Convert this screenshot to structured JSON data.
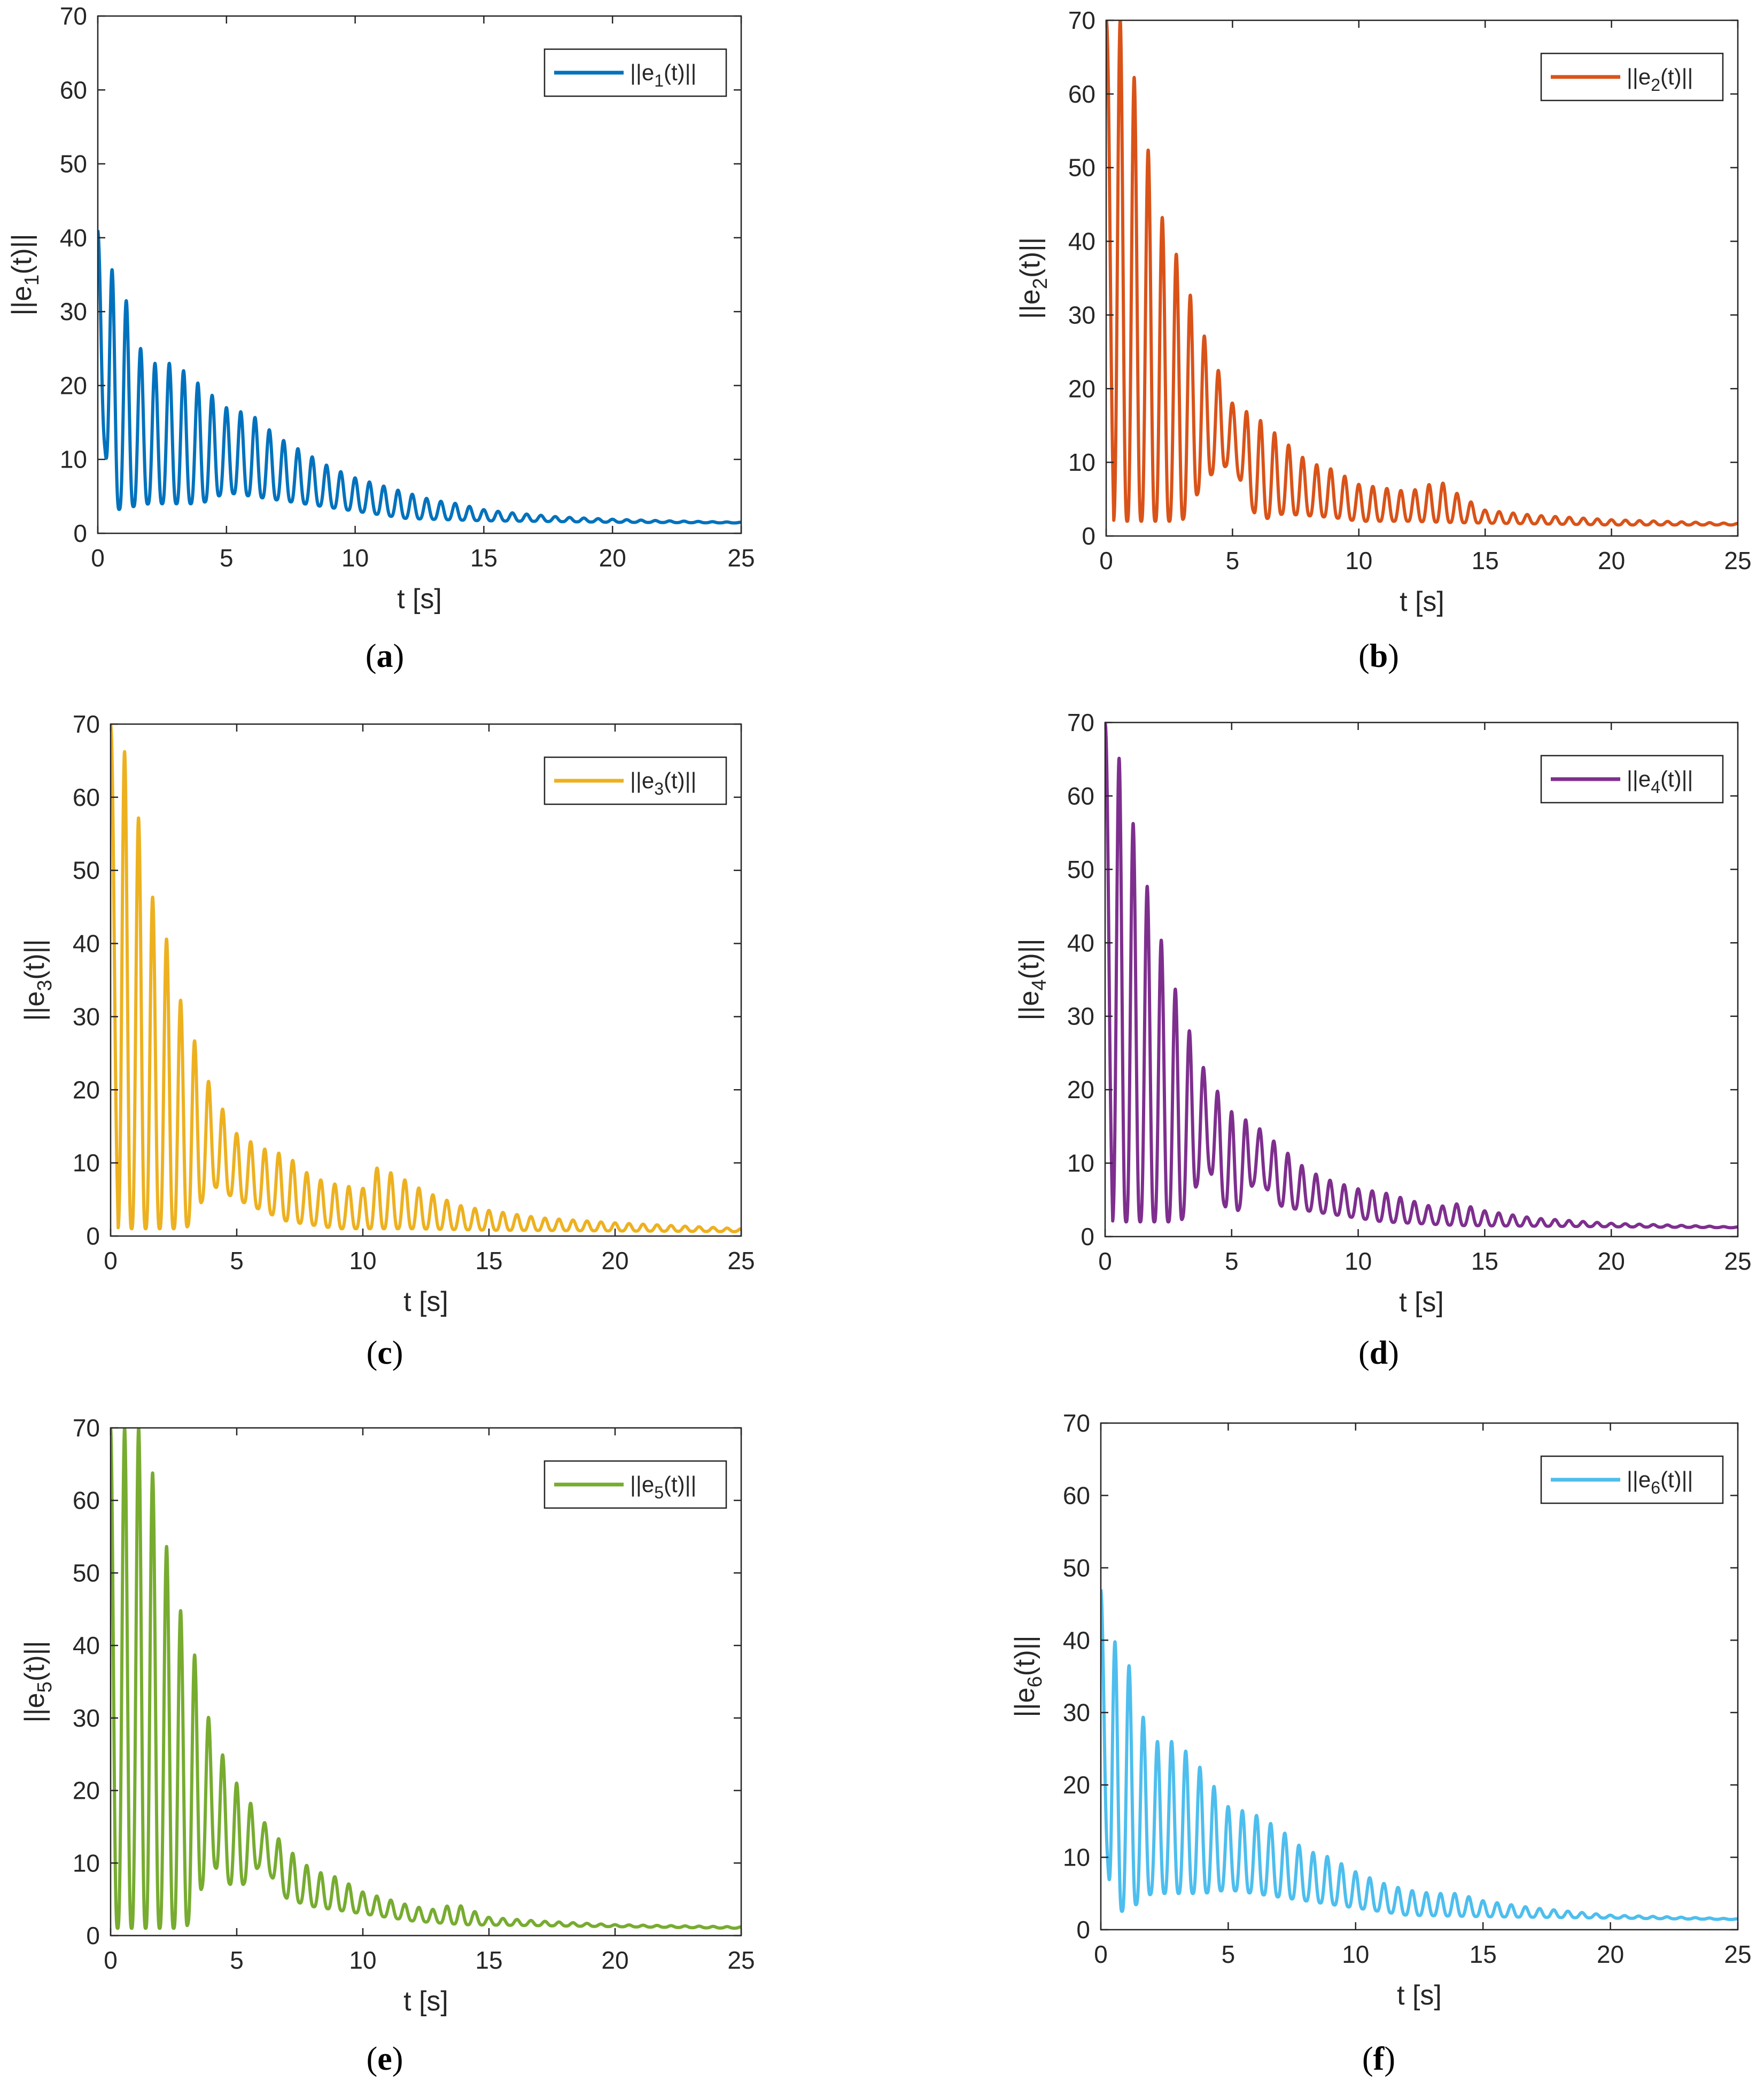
{
  "figure": {
    "captions": [
      "(a)",
      "(b)",
      "(c)",
      "(d)",
      "(e)",
      "(f)"
    ]
  },
  "chart_data": [
    {
      "panel": "(a)",
      "type": "line",
      "title": "",
      "xlabel": "t [s]",
      "ylabel_base": "||e",
      "ylabel_sub": "1",
      "ylabel_tail": "(t)||",
      "legend_base": "||e",
      "legend_sub": "1",
      "legend_tail": "(t)||",
      "legend_position": "top-right",
      "xlim": [
        0,
        25
      ],
      "ylim": [
        0,
        70
      ],
      "xticks": [
        0,
        5,
        10,
        15,
        20,
        25
      ],
      "yticks": [
        0,
        10,
        20,
        30,
        40,
        50,
        60,
        70
      ],
      "color": "#0072BD",
      "freq_hz": 1.8,
      "baseline": 1.5,
      "envelope": [
        [
          0,
          41
        ],
        [
          0.5,
          36
        ],
        [
          1,
          33
        ],
        [
          1.5,
          26
        ],
        [
          2,
          23
        ],
        [
          3,
          23
        ],
        [
          4,
          20
        ],
        [
          5,
          17
        ],
        [
          6,
          16
        ],
        [
          7,
          13
        ],
        [
          8,
          11
        ],
        [
          9,
          9
        ],
        [
          10,
          7.5
        ],
        [
          11,
          6.5
        ],
        [
          12,
          5.5
        ],
        [
          13,
          4.5
        ],
        [
          14,
          4
        ],
        [
          15,
          3.2
        ],
        [
          16,
          2.8
        ],
        [
          18,
          2.2
        ],
        [
          20,
          1.9
        ],
        [
          22,
          1.7
        ],
        [
          25,
          1.5
        ]
      ],
      "minima": [
        [
          0,
          22
        ],
        [
          0.5,
          3
        ],
        [
          1.2,
          3.5
        ],
        [
          2,
          4
        ],
        [
          4,
          4
        ],
        [
          5,
          5.5
        ],
        [
          6,
          5
        ],
        [
          8,
          4
        ],
        [
          10,
          3
        ],
        [
          12,
          2
        ],
        [
          15,
          1.7
        ],
        [
          20,
          1.5
        ],
        [
          25,
          1.4
        ]
      ]
    },
    {
      "panel": "(b)",
      "type": "line",
      "title": "",
      "xlabel": "t [s]",
      "ylabel_base": "||e",
      "ylabel_sub": "2",
      "ylabel_tail": "(t)||",
      "legend_base": "||e",
      "legend_sub": "2",
      "legend_tail": "(t)||",
      "legend_position": "top-right",
      "xlim": [
        0,
        25
      ],
      "ylim": [
        0,
        70
      ],
      "xticks": [
        0,
        5,
        10,
        15,
        20,
        25
      ],
      "yticks": [
        0,
        10,
        20,
        30,
        40,
        50,
        60,
        70
      ],
      "color": "#D95319",
      "freq_hz": 1.8,
      "baseline": 1.5,
      "envelope": [
        [
          0,
          70
        ],
        [
          0.6,
          70
        ],
        [
          1,
          64
        ],
        [
          1.5,
          56
        ],
        [
          2,
          45
        ],
        [
          2.5,
          41
        ],
        [
          3,
          36
        ],
        [
          4,
          26
        ],
        [
          5,
          18
        ],
        [
          6,
          16
        ],
        [
          7,
          13
        ],
        [
          8,
          10
        ],
        [
          9,
          9
        ],
        [
          10,
          7
        ],
        [
          11,
          6.5
        ],
        [
          12,
          6
        ],
        [
          13.2,
          7.5
        ],
        [
          14,
          5.5
        ],
        [
          15,
          3.5
        ],
        [
          17,
          2.8
        ],
        [
          20,
          2.2
        ],
        [
          25,
          1.7
        ]
      ],
      "minima": [
        [
          0,
          58
        ],
        [
          0.3,
          2
        ],
        [
          3,
          2
        ],
        [
          4,
          8
        ],
        [
          5,
          10
        ],
        [
          6,
          2
        ],
        [
          7,
          3
        ],
        [
          9,
          2.5
        ],
        [
          10,
          2
        ],
        [
          12,
          2
        ],
        [
          14,
          1.8
        ],
        [
          20,
          1.5
        ],
        [
          25,
          1.5
        ]
      ]
    },
    {
      "panel": "(c)",
      "type": "line",
      "title": "",
      "xlabel": "t [s]",
      "ylabel_base": "||e",
      "ylabel_sub": "3",
      "ylabel_tail": "(t)||",
      "legend_base": "||e",
      "legend_sub": "3",
      "legend_tail": "(t)||",
      "legend_position": "top-right",
      "xlim": [
        0,
        25
      ],
      "ylim": [
        0,
        70
      ],
      "xticks": [
        0,
        5,
        10,
        15,
        20,
        25
      ],
      "yticks": [
        0,
        10,
        20,
        30,
        40,
        50,
        60,
        70
      ],
      "color": "#EDB120",
      "freq_hz": 1.8,
      "baseline": 0.8,
      "envelope": [
        [
          0,
          70
        ],
        [
          0.5,
          67
        ],
        [
          1,
          60
        ],
        [
          1.5,
          47
        ],
        [
          2,
          45
        ],
        [
          2.5,
          35
        ],
        [
          3,
          30
        ],
        [
          4,
          20
        ],
        [
          5,
          14
        ],
        [
          6,
          12
        ],
        [
          7,
          11
        ],
        [
          8,
          8
        ],
        [
          9,
          7
        ],
        [
          10,
          6.5
        ],
        [
          10.6,
          9.5
        ],
        [
          11.5,
          8
        ],
        [
          12.5,
          6
        ],
        [
          14,
          4
        ],
        [
          15,
          3.5
        ],
        [
          17,
          2.5
        ],
        [
          20,
          1.8
        ],
        [
          25,
          1
        ]
      ],
      "minima": [
        [
          0,
          50
        ],
        [
          0.3,
          1
        ],
        [
          3,
          1
        ],
        [
          4,
          7
        ],
        [
          5,
          5
        ],
        [
          7,
          2
        ],
        [
          9,
          1
        ],
        [
          12,
          1
        ],
        [
          15,
          0.8
        ],
        [
          25,
          0.6
        ]
      ]
    },
    {
      "panel": "(d)",
      "type": "line",
      "title": "",
      "xlabel": "t [s]",
      "ylabel_base": "||e",
      "ylabel_sub": "4",
      "ylabel_tail": "(t)||",
      "legend_base": "||e",
      "legend_sub": "4",
      "legend_tail": "(t)||",
      "legend_position": "top-right",
      "xlim": [
        0,
        25
      ],
      "ylim": [
        0,
        70
      ],
      "xticks": [
        0,
        5,
        10,
        15,
        20,
        25
      ],
      "yticks": [
        0,
        10,
        20,
        30,
        40,
        50,
        60,
        70
      ],
      "color": "#7E2F8E",
      "freq_hz": 1.8,
      "baseline": 1.3,
      "envelope": [
        [
          0,
          70
        ],
        [
          0.5,
          66
        ],
        [
          1,
          58
        ],
        [
          1.5,
          50
        ],
        [
          2,
          43
        ],
        [
          3,
          31
        ],
        [
          4,
          22
        ],
        [
          5,
          17
        ],
        [
          6,
          15
        ],
        [
          7,
          12
        ],
        [
          8,
          9
        ],
        [
          9,
          7.5
        ],
        [
          10,
          6.5
        ],
        [
          11,
          6
        ],
        [
          12,
          5
        ],
        [
          13,
          4
        ],
        [
          14,
          4.5
        ],
        [
          15,
          3.5
        ],
        [
          17,
          2.5
        ],
        [
          20,
          1.8
        ],
        [
          25,
          1.3
        ]
      ],
      "minima": [
        [
          0,
          52
        ],
        [
          0.3,
          2
        ],
        [
          3,
          2
        ],
        [
          4,
          10
        ],
        [
          5,
          2
        ],
        [
          6,
          8
        ],
        [
          7,
          4
        ],
        [
          9,
          3
        ],
        [
          11,
          2
        ],
        [
          14,
          1.5
        ],
        [
          25,
          1.2
        ]
      ]
    },
    {
      "panel": "(e)",
      "type": "line",
      "title": "",
      "xlabel": "t [s]",
      "ylabel_base": "||e",
      "ylabel_sub": "5",
      "ylabel_tail": "(t)||",
      "legend_base": "||e",
      "legend_sub": "5",
      "legend_tail": "(t)||",
      "legend_position": "top-right",
      "xlim": [
        0,
        25
      ],
      "ylim": [
        0,
        70
      ],
      "xticks": [
        0,
        5,
        10,
        15,
        20,
        25
      ],
      "yticks": [
        0,
        10,
        20,
        30,
        40,
        50,
        60,
        70
      ],
      "color": "#77AC30",
      "freq_hz": 1.8,
      "baseline": 1.2,
      "envelope": [
        [
          0,
          70
        ],
        [
          1.2,
          70
        ],
        [
          1.8,
          62
        ],
        [
          2.2,
          54
        ],
        [
          2.6,
          47
        ],
        [
          3,
          42
        ],
        [
          3.5,
          37
        ],
        [
          4,
          28
        ],
        [
          5,
          21
        ],
        [
          6,
          16
        ],
        [
          7,
          12
        ],
        [
          8,
          9
        ],
        [
          9,
          8
        ],
        [
          10,
          6
        ],
        [
          11,
          5
        ],
        [
          12,
          4
        ],
        [
          13,
          3.5
        ],
        [
          13.6,
          4.5
        ],
        [
          15,
          2.5
        ],
        [
          17,
          2
        ],
        [
          20,
          1.5
        ],
        [
          25,
          1.2
        ]
      ],
      "minima": [
        [
          0,
          1
        ],
        [
          3,
          1
        ],
        [
          4,
          10
        ],
        [
          5,
          6
        ],
        [
          6,
          10
        ],
        [
          7,
          5
        ],
        [
          8,
          4
        ],
        [
          10,
          3
        ],
        [
          12,
          2
        ],
        [
          14,
          1.5
        ],
        [
          25,
          1
        ]
      ]
    },
    {
      "panel": "(f)",
      "type": "line",
      "title": "",
      "xlabel": "t [s]",
      "ylabel_base": "||e",
      "ylabel_sub": "6",
      "ylabel_tail": "(t)||",
      "legend_base": "||e",
      "legend_sub": "6",
      "legend_tail": "(t)||",
      "legend_position": "top-right",
      "xlim": [
        0,
        25
      ],
      "ylim": [
        0,
        70
      ],
      "xticks": [
        0,
        5,
        10,
        15,
        20,
        25
      ],
      "yticks": [
        0,
        10,
        20,
        30,
        40,
        50,
        60,
        70
      ],
      "color": "#4DBEEE",
      "freq_hz": 1.8,
      "baseline": 1.5,
      "envelope": [
        [
          0,
          47
        ],
        [
          0.5,
          40
        ],
        [
          1,
          38
        ],
        [
          1.5,
          31
        ],
        [
          2,
          26
        ],
        [
          3,
          26
        ],
        [
          4,
          22
        ],
        [
          5,
          17
        ],
        [
          6,
          16
        ],
        [
          7,
          14
        ],
        [
          8,
          11
        ],
        [
          9,
          10
        ],
        [
          10,
          8
        ],
        [
          11,
          6.5
        ],
        [
          12,
          5.5
        ],
        [
          13,
          5
        ],
        [
          14,
          5
        ],
        [
          15,
          4
        ],
        [
          17,
          3
        ],
        [
          20,
          2
        ],
        [
          25,
          1.5
        ]
      ],
      "minima": [
        [
          0,
          25
        ],
        [
          0.4,
          2
        ],
        [
          1.2,
          3
        ],
        [
          2,
          5
        ],
        [
          4,
          5
        ],
        [
          5,
          5.5
        ],
        [
          6,
          5
        ],
        [
          8,
          4
        ],
        [
          10,
          3
        ],
        [
          12,
          2
        ],
        [
          15,
          1.8
        ],
        [
          25,
          1.4
        ]
      ]
    }
  ]
}
